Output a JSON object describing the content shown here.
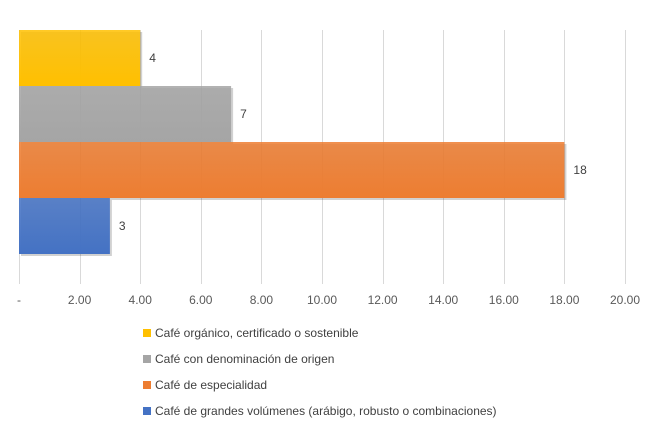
{
  "chart_data": {
    "type": "bar",
    "orientation": "horizontal",
    "xlim": [
      0,
      20
    ],
    "x_ticks": [
      0,
      2,
      4,
      6,
      8,
      10,
      12,
      14,
      16,
      18,
      20
    ],
    "x_tick_labels": [
      "-",
      "2.00",
      "4.00",
      "6.00",
      "8.00",
      "10.00",
      "12.00",
      "14.00",
      "16.00",
      "18.00",
      "20.00"
    ],
    "grid": true,
    "legend_position": "bottom",
    "series": [
      {
        "name": "Café orgánico, certificado o sostenible",
        "values": [
          4
        ],
        "color": "#FFC000"
      },
      {
        "name": "Café con denominación de origen",
        "values": [
          7
        ],
        "color": "#A5A5A5"
      },
      {
        "name": "Café de especialidad",
        "values": [
          18
        ],
        "color": "#ED7D31"
      },
      {
        "name": "Café de grandes volúmenes (arábigo, robusto o combinaciones)",
        "values": [
          3
        ],
        "color": "#4472C4"
      }
    ]
  }
}
